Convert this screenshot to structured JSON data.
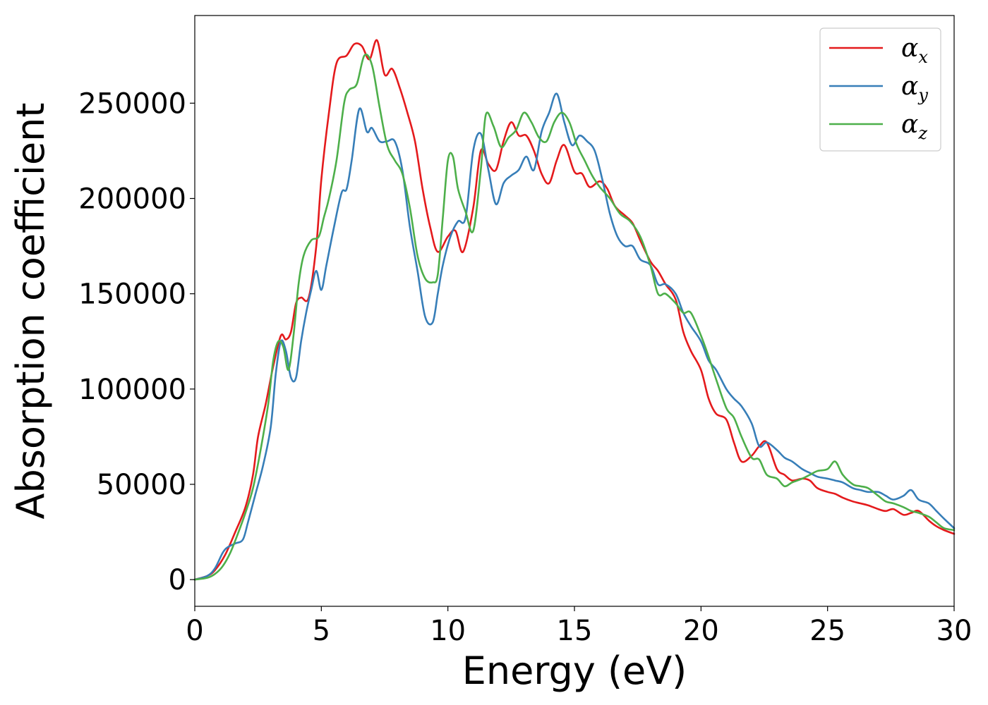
{
  "chart_data": {
    "type": "line",
    "title": "",
    "xlabel": "Energy (eV)",
    "ylabel": "Absorption coefficient",
    "xlim": [
      0,
      30
    ],
    "ylim": [
      -14000,
      296000
    ],
    "xticks": [
      0,
      5,
      10,
      15,
      20,
      25,
      30
    ],
    "yticks": [
      0,
      50000,
      100000,
      150000,
      200000,
      250000
    ],
    "grid": false,
    "legend_position": "top-right",
    "series": [
      {
        "name": "α_x",
        "symbol": "α",
        "subscript": "x",
        "color": "#e41a1c",
        "x": [
          0,
          0.5,
          0.8,
          1.2,
          1.6,
          2.0,
          2.3,
          2.5,
          2.8,
          3.1,
          3.4,
          3.6,
          3.8,
          4.0,
          4.2,
          4.5,
          4.8,
          5.0,
          5.3,
          5.6,
          6.0,
          6.3,
          6.6,
          6.9,
          7.2,
          7.5,
          7.8,
          8.1,
          8.4,
          8.7,
          9.0,
          9.3,
          9.6,
          10.0,
          10.3,
          10.6,
          11.0,
          11.3,
          11.6,
          11.9,
          12.2,
          12.5,
          12.8,
          13.1,
          13.4,
          13.7,
          14.0,
          14.3,
          14.6,
          15.0,
          15.3,
          15.6,
          16.0,
          16.3,
          16.6,
          17.0,
          17.3,
          17.6,
          18.0,
          18.3,
          18.6,
          19.0,
          19.3,
          19.6,
          20.0,
          20.3,
          20.6,
          21.0,
          21.3,
          21.6,
          22.0,
          22.3,
          22.6,
          23.0,
          23.3,
          23.6,
          24.0,
          24.3,
          24.6,
          25.0,
          25.3,
          25.6,
          26.0,
          26.3,
          26.6,
          27.0,
          27.3,
          27.6,
          28.0,
          28.3,
          28.6,
          29.0,
          29.3,
          29.6,
          30.0
        ],
        "y": [
          0,
          2000,
          5000,
          13000,
          25000,
          38000,
          55000,
          75000,
          92000,
          112000,
          128000,
          126000,
          130000,
          145000,
          148000,
          148000,
          175000,
          210000,
          245000,
          271000,
          275000,
          281000,
          280000,
          273000,
          283000,
          265000,
          268000,
          258000,
          245000,
          230000,
          205000,
          185000,
          172000,
          180000,
          183000,
          172000,
          195000,
          225000,
          218000,
          215000,
          230000,
          240000,
          233000,
          233000,
          225000,
          213000,
          208000,
          220000,
          228000,
          214000,
          213000,
          206000,
          209000,
          205000,
          196000,
          191000,
          187000,
          178000,
          167000,
          162000,
          155000,
          147000,
          130000,
          120000,
          110000,
          95000,
          87000,
          84000,
          72000,
          62000,
          65000,
          70000,
          72000,
          58000,
          55000,
          52000,
          53000,
          52000,
          48000,
          46000,
          45000,
          43000,
          41000,
          40000,
          39000,
          37000,
          36000,
          37000,
          34000,
          35000,
          36000,
          31000,
          28000,
          26000,
          24000
        ]
      },
      {
        "name": "α_y",
        "symbol": "α",
        "subscript": "y",
        "color": "#377eb8",
        "x": [
          0,
          0.5,
          0.8,
          1.1,
          1.3,
          1.6,
          1.9,
          2.1,
          2.4,
          2.7,
          3.0,
          3.2,
          3.4,
          3.6,
          3.8,
          4.0,
          4.2,
          4.4,
          4.6,
          4.8,
          5.0,
          5.2,
          5.5,
          5.8,
          6.0,
          6.2,
          6.5,
          6.8,
          7.0,
          7.3,
          7.6,
          7.9,
          8.2,
          8.5,
          8.8,
          9.1,
          9.4,
          9.6,
          9.8,
          10.1,
          10.4,
          10.7,
          11.0,
          11.3,
          11.6,
          11.9,
          12.2,
          12.5,
          12.8,
          13.1,
          13.4,
          13.7,
          14.0,
          14.3,
          14.6,
          14.9,
          15.2,
          15.5,
          15.8,
          16.1,
          16.4,
          16.7,
          17.0,
          17.3,
          17.6,
          18.0,
          18.3,
          18.6,
          19.0,
          19.3,
          19.6,
          20.0,
          20.3,
          20.6,
          21.0,
          21.3,
          21.6,
          22.0,
          22.3,
          22.6,
          23.0,
          23.3,
          23.6,
          24.0,
          24.3,
          24.6,
          25.0,
          25.3,
          25.6,
          26.0,
          26.3,
          26.6,
          27.0,
          27.3,
          27.6,
          28.0,
          28.3,
          28.6,
          29.0,
          29.3,
          29.6,
          30.0
        ],
        "y": [
          0,
          2000,
          6000,
          14000,
          17000,
          19000,
          21000,
          30000,
          45000,
          60000,
          80000,
          108000,
          125000,
          120000,
          106000,
          106000,
          125000,
          140000,
          152000,
          162000,
          152000,
          165000,
          185000,
          203000,
          205000,
          220000,
          247000,
          235000,
          237000,
          230000,
          230000,
          230000,
          215000,
          185000,
          162000,
          138000,
          135000,
          150000,
          165000,
          180000,
          188000,
          190000,
          225000,
          234000,
          215000,
          197000,
          208000,
          212000,
          215000,
          222000,
          215000,
          235000,
          245000,
          255000,
          240000,
          228000,
          233000,
          230000,
          225000,
          210000,
          192000,
          180000,
          175000,
          175000,
          168000,
          165000,
          155000,
          155000,
          150000,
          140000,
          133000,
          125000,
          115000,
          110000,
          100000,
          95000,
          91000,
          82000,
          70000,
          72000,
          68000,
          64000,
          62000,
          58000,
          56000,
          54000,
          53000,
          52000,
          51000,
          48000,
          47000,
          46000,
          46000,
          44000,
          42000,
          44000,
          47000,
          42000,
          40000,
          36000,
          32000,
          27000
        ]
      },
      {
        "name": "α_z",
        "symbol": "α",
        "subscript": "z",
        "color": "#4daf4a",
        "x": [
          0,
          0.5,
          0.8,
          1.1,
          1.4,
          1.7,
          2.0,
          2.3,
          2.6,
          2.9,
          3.1,
          3.3,
          3.5,
          3.7,
          3.9,
          4.1,
          4.3,
          4.6,
          4.9,
          5.1,
          5.3,
          5.6,
          5.9,
          6.1,
          6.4,
          6.7,
          7.0,
          7.3,
          7.6,
          7.9,
          8.2,
          8.5,
          8.8,
          9.1,
          9.4,
          9.6,
          9.8,
          10.0,
          10.2,
          10.4,
          10.7,
          11.0,
          11.3,
          11.5,
          11.8,
          12.1,
          12.4,
          12.7,
          13.0,
          13.3,
          13.6,
          13.9,
          14.2,
          14.5,
          14.8,
          15.1,
          15.4,
          15.7,
          16.0,
          16.4,
          16.8,
          17.2,
          17.6,
          18.0,
          18.3,
          18.6,
          19.0,
          19.3,
          19.6,
          20.0,
          20.3,
          20.6,
          21.0,
          21.3,
          21.6,
          22.0,
          22.3,
          22.6,
          23.0,
          23.3,
          23.6,
          24.0,
          24.3,
          24.6,
          25.0,
          25.3,
          25.6,
          26.0,
          26.3,
          26.6,
          27.0,
          27.3,
          27.6,
          28.0,
          28.3,
          28.6,
          29.0,
          29.3,
          29.6,
          30.0
        ],
        "y": [
          0,
          1000,
          3000,
          7000,
          14000,
          24000,
          35000,
          48000,
          68000,
          92000,
          115000,
          125000,
          122000,
          110000,
          128000,
          155000,
          170000,
          178000,
          180000,
          190000,
          200000,
          220000,
          250000,
          257000,
          260000,
          275000,
          270000,
          248000,
          228000,
          220000,
          213000,
          195000,
          170000,
          158000,
          156000,
          160000,
          190000,
          220000,
          222000,
          205000,
          193000,
          183000,
          215000,
          244000,
          238000,
          227000,
          232000,
          236000,
          245000,
          240000,
          232000,
          230000,
          240000,
          245000,
          240000,
          228000,
          220000,
          212000,
          206000,
          200000,
          192000,
          188000,
          180000,
          165000,
          150000,
          150000,
          145000,
          140000,
          140000,
          128000,
          117000,
          105000,
          90000,
          85000,
          75000,
          64000,
          63000,
          55000,
          53000,
          49000,
          51000,
          53000,
          55000,
          57000,
          58000,
          62000,
          55000,
          50000,
          49000,
          48000,
          44000,
          41000,
          40000,
          38000,
          36000,
          35000,
          33000,
          30000,
          27000,
          26000
        ]
      }
    ]
  }
}
